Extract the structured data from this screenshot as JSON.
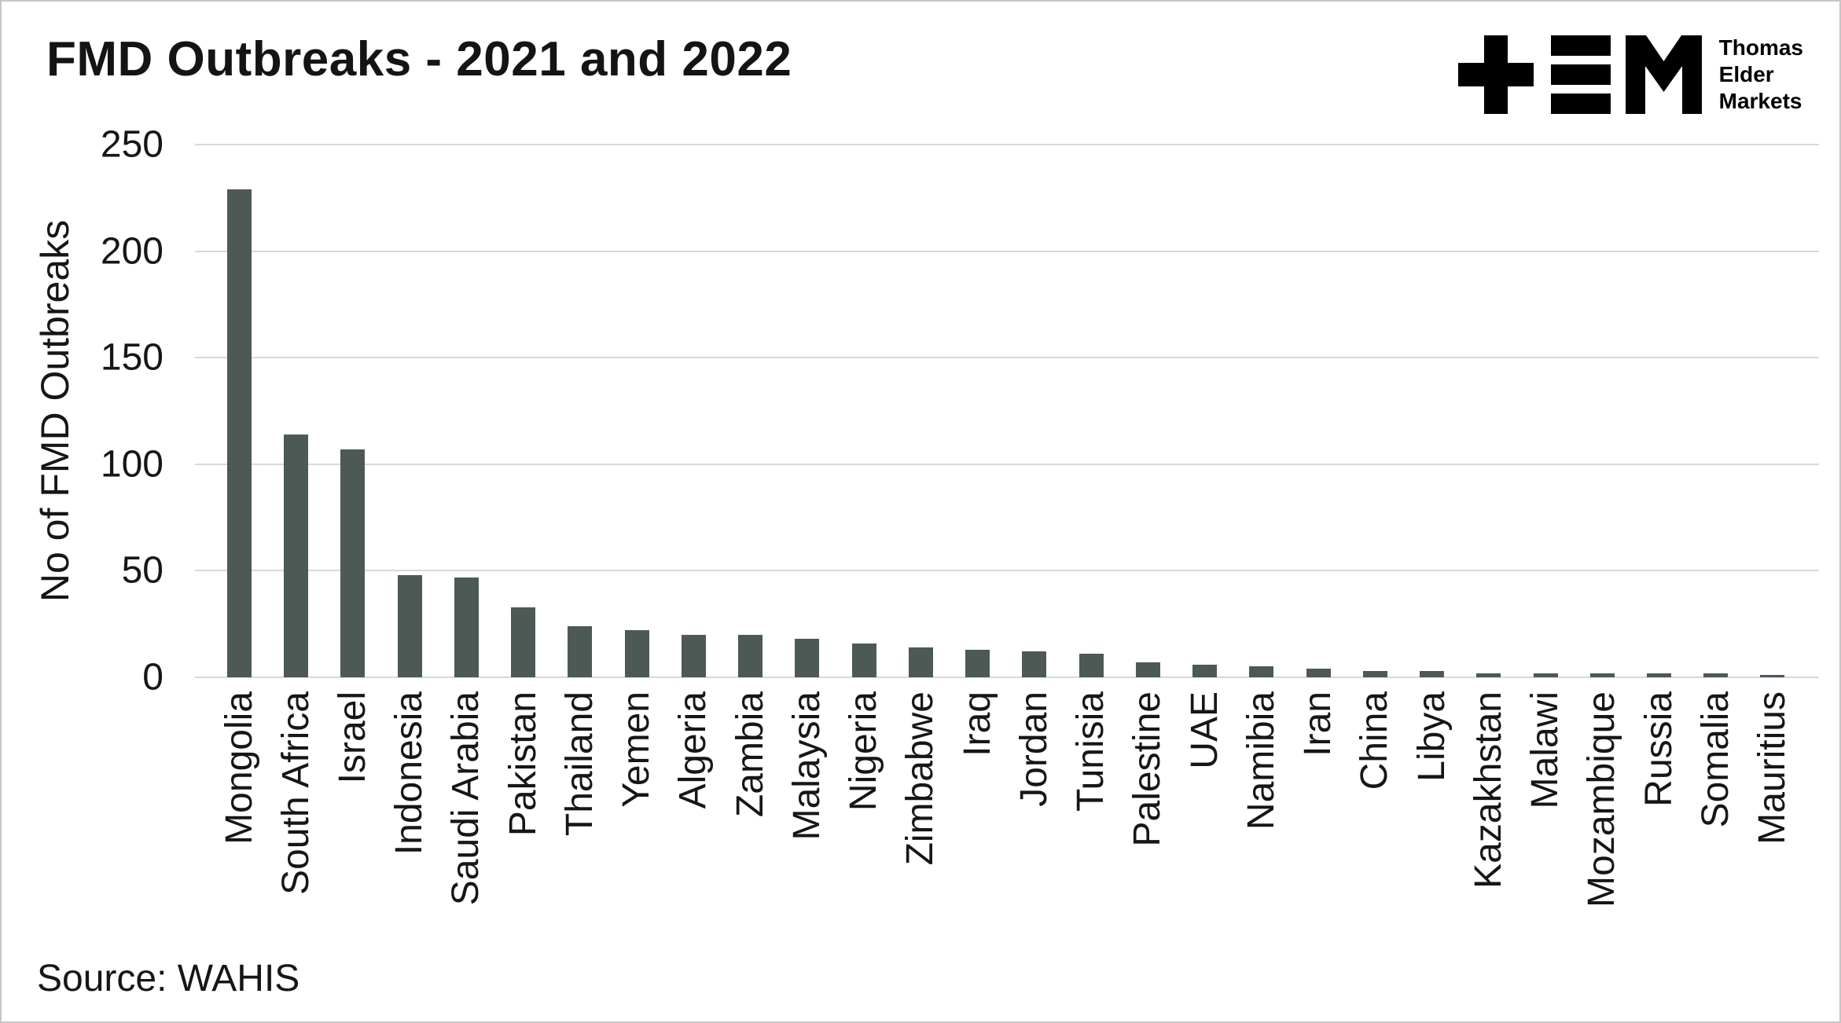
{
  "logo": {
    "name": "Thomas Elder Markets",
    "lines": [
      "Thomas",
      "Elder",
      "Markets"
    ]
  },
  "colors": {
    "bar": "#4c5954",
    "gridline": "#d8d8d8",
    "text": "#161616",
    "logo": "#000000"
  },
  "chart_data": {
    "type": "bar",
    "title": "FMD Outbreaks - 2021 and 2022",
    "xlabel": "",
    "ylabel": "No of FMD Outbreaks",
    "source": "Source: WAHIS",
    "ylim": [
      0,
      250
    ],
    "yticks": [
      0,
      50,
      100,
      150,
      200,
      250
    ],
    "grid": "horizontal",
    "legend": "none",
    "categories": [
      "Mongolia",
      "South Africa",
      "Israel",
      "Indonesia",
      "Saudi Arabia",
      "Pakistan",
      "Thailand",
      "Yemen",
      "Algeria",
      "Zambia",
      "Malaysia",
      "Nigeria",
      "Zimbabwe",
      "Iraq",
      "Jordan",
      "Tunisia",
      "Palestine",
      "UAE",
      "Namibia",
      "Iran",
      "China",
      "Libya",
      "Kazakhstan",
      "Malawi",
      "Mozambique",
      "Russia",
      "Somalia",
      "Mauritius"
    ],
    "values": [
      229,
      114,
      107,
      48,
      47,
      33,
      24,
      22,
      20,
      20,
      18,
      16,
      14,
      13,
      12,
      11,
      7,
      6,
      5,
      4,
      3,
      3,
      2,
      2,
      2,
      2,
      2,
      1
    ]
  }
}
